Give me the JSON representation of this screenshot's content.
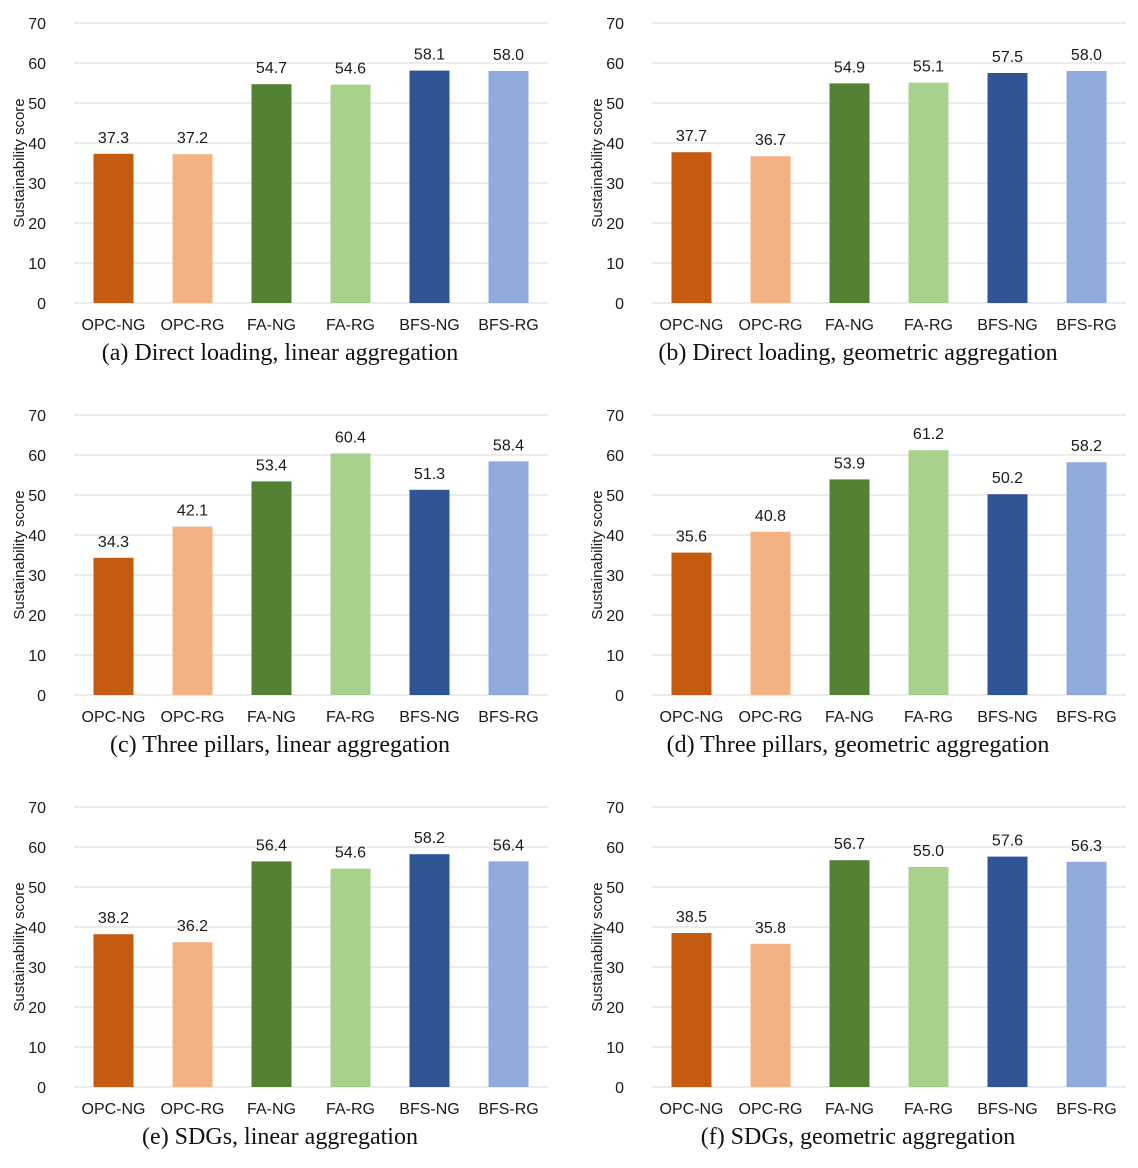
{
  "figure": {
    "colors": [
      "#c55a11",
      "#f4b183",
      "#548235",
      "#a9d18e",
      "#2f5597",
      "#8faadc"
    ],
    "grid_color": "#d9d9d9"
  },
  "chart_data": [
    {
      "type": "bar",
      "caption": "(a) Direct loading, linear aggregation",
      "ylabel": "Sustainability score",
      "categories": [
        "OPC-NG",
        "OPC-RG",
        "FA-NG",
        "FA-RG",
        "BFS-NG",
        "BFS-RG"
      ],
      "values": [
        37.3,
        37.2,
        54.7,
        54.6,
        58.1,
        58.0
      ],
      "value_labels": [
        "37.3",
        "37.2",
        "54.7",
        "54.6",
        "58.1",
        "58.0"
      ],
      "ylim": [
        0,
        70
      ],
      "yticks": [
        "0",
        "10",
        "20",
        "30",
        "40",
        "50",
        "60",
        "70"
      ],
      "grid": true
    },
    {
      "type": "bar",
      "caption": "(b) Direct loading, geometric aggregation",
      "ylabel": "Sustainability score",
      "categories": [
        "OPC-NG",
        "OPC-RG",
        "FA-NG",
        "FA-RG",
        "BFS-NG",
        "BFS-RG"
      ],
      "values": [
        37.7,
        36.7,
        54.9,
        55.1,
        57.5,
        58.0
      ],
      "value_labels": [
        "37.7",
        "36.7",
        "54.9",
        "55.1",
        "57.5",
        "58.0"
      ],
      "ylim": [
        0,
        70
      ],
      "yticks": [
        "0",
        "10",
        "20",
        "30",
        "40",
        "50",
        "60",
        "70"
      ],
      "grid": true
    },
    {
      "type": "bar",
      "caption": "(c) Three pillars, linear aggregation",
      "ylabel": "Sustainability score",
      "categories": [
        "OPC-NG",
        "OPC-RG",
        "FA-NG",
        "FA-RG",
        "BFS-NG",
        "BFS-RG"
      ],
      "values": [
        34.3,
        42.1,
        53.4,
        60.4,
        51.3,
        58.4
      ],
      "value_labels": [
        "34.3",
        "42.1",
        "53.4",
        "60.4",
        "51.3",
        "58.4"
      ],
      "ylim": [
        0,
        70
      ],
      "yticks": [
        "0",
        "10",
        "20",
        "30",
        "40",
        "50",
        "60",
        "70"
      ],
      "grid": true
    },
    {
      "type": "bar",
      "caption": "(d) Three pillars, geometric aggregation",
      "ylabel": "Sustainability score",
      "categories": [
        "OPC-NG",
        "OPC-RG",
        "FA-NG",
        "FA-RG",
        "BFS-NG",
        "BFS-RG"
      ],
      "values": [
        35.6,
        40.8,
        53.9,
        61.2,
        50.2,
        58.2
      ],
      "value_labels": [
        "35.6",
        "40.8",
        "53.9",
        "61.2",
        "50.2",
        "58.2"
      ],
      "ylim": [
        0,
        70
      ],
      "yticks": [
        "0",
        "10",
        "20",
        "30",
        "40",
        "50",
        "60",
        "70"
      ],
      "grid": true
    },
    {
      "type": "bar",
      "caption": "(e) SDGs, linear aggregation",
      "ylabel": "Sustainability score",
      "categories": [
        "OPC-NG",
        "OPC-RG",
        "FA-NG",
        "FA-RG",
        "BFS-NG",
        "BFS-RG"
      ],
      "values": [
        38.2,
        36.2,
        56.4,
        54.6,
        58.2,
        56.4
      ],
      "value_labels": [
        "38.2",
        "36.2",
        "56.4",
        "54.6",
        "58.2",
        "56.4"
      ],
      "ylim": [
        0,
        70
      ],
      "yticks": [
        "0",
        "10",
        "20",
        "30",
        "40",
        "50",
        "60",
        "70"
      ],
      "grid": true
    },
    {
      "type": "bar",
      "caption": "(f) SDGs, geometric aggregation",
      "ylabel": "Sustainability score",
      "categories": [
        "OPC-NG",
        "OPC-RG",
        "FA-NG",
        "FA-RG",
        "BFS-NG",
        "BFS-RG"
      ],
      "values": [
        38.5,
        35.8,
        56.7,
        55.0,
        57.6,
        56.3
      ],
      "value_labels": [
        "38.5",
        "35.8",
        "56.7",
        "55.0",
        "57.6",
        "56.3"
      ],
      "ylim": [
        0,
        70
      ],
      "yticks": [
        "0",
        "10",
        "20",
        "30",
        "40",
        "50",
        "60",
        "70"
      ],
      "grid": true
    }
  ]
}
